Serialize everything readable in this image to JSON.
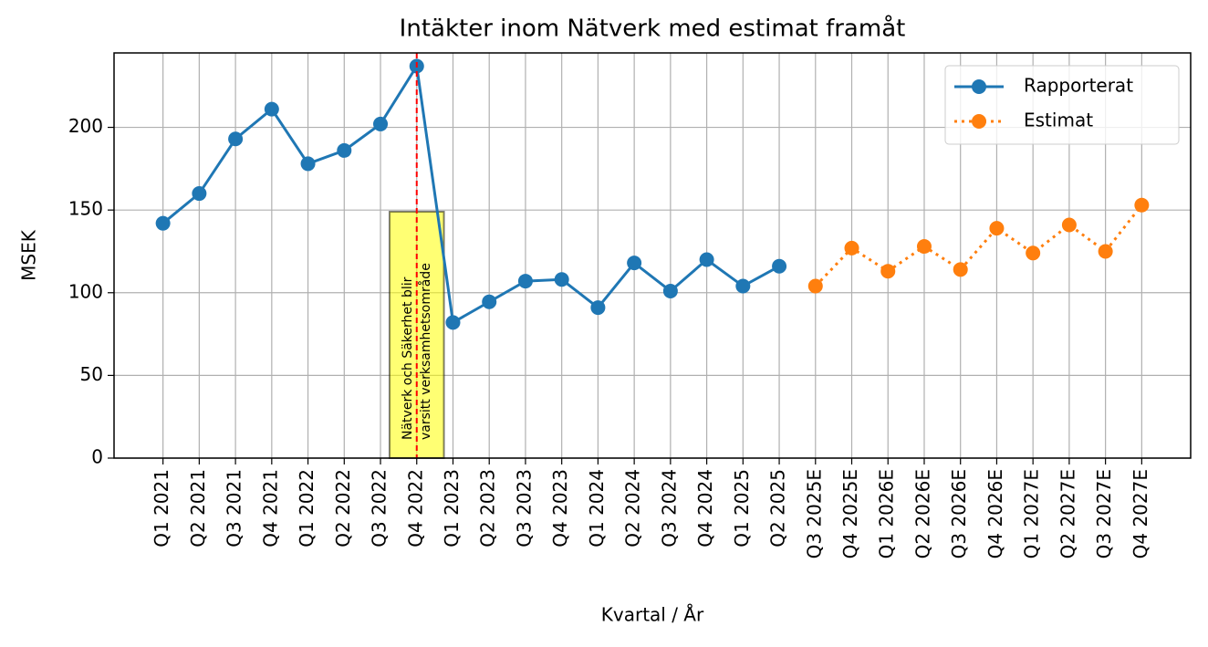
{
  "chart_data": {
    "type": "line",
    "title": "Intäkter inom Nätverk med estimat framåt",
    "xlabel": "Kvartal / År",
    "ylabel": "MSEK",
    "categories": [
      "Q1 2021",
      "Q2 2021",
      "Q3 2021",
      "Q4 2021",
      "Q1 2022",
      "Q2 2022",
      "Q3 2022",
      "Q4 2022",
      "Q1 2023",
      "Q2 2023",
      "Q3 2023",
      "Q4 2023",
      "Q1 2024",
      "Q2 2024",
      "Q3 2024",
      "Q4 2024",
      "Q1 2025",
      "Q2 2025",
      "Q3 2025E",
      "Q4 2025E",
      "Q1 2026E",
      "Q2 2026E",
      "Q3 2026E",
      "Q4 2026E",
      "Q1 2027E",
      "Q2 2027E",
      "Q3 2027E",
      "Q4 2027E"
    ],
    "series": [
      {
        "name": "Rapporterat",
        "color": "#1f77b4",
        "linestyle": "solid",
        "values": [
          142,
          160,
          193,
          211,
          178,
          186,
          202,
          237,
          82,
          94.5,
          107,
          108,
          91,
          118,
          101,
          120,
          104,
          116,
          null,
          null,
          null,
          null,
          null,
          null,
          null,
          null,
          null,
          null
        ]
      },
      {
        "name": "Estimat",
        "color": "#ff7f0e",
        "linestyle": "dotted",
        "values": [
          null,
          null,
          null,
          null,
          null,
          null,
          null,
          null,
          null,
          null,
          null,
          null,
          null,
          null,
          null,
          null,
          null,
          null,
          104,
          127,
          113,
          128,
          114,
          139,
          124,
          141,
          125,
          153
        ]
      }
    ],
    "annotation": {
      "x": "Q4 2022",
      "lines": [
        "Nätverk och Säkerhet blir",
        "varsitt verksamhetsområde"
      ],
      "color": "#ffff00",
      "line_color": "#ff0000"
    },
    "ylim": [
      0,
      245
    ],
    "yticks": [
      0,
      50,
      100,
      150,
      200
    ],
    "grid": true,
    "legend": "upper right"
  }
}
